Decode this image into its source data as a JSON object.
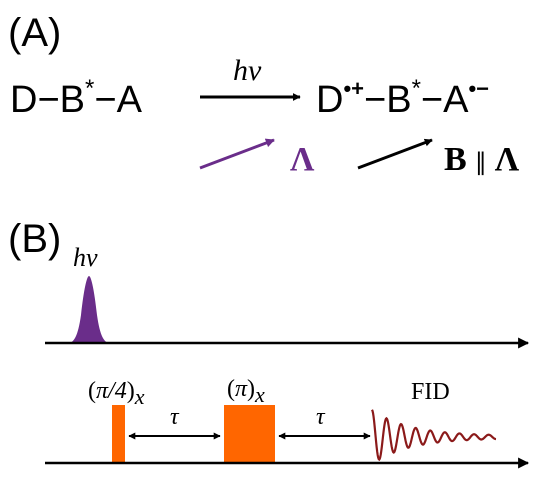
{
  "panel_a": {
    "label": "(A)",
    "reactant": {
      "d": "D",
      "dash1": "−",
      "b": "B",
      "b_star": "*",
      "dash2": "−",
      "a": "A"
    },
    "arrow_label": "hν",
    "product": {
      "d": "D",
      "d_charge": "•+",
      "dash1": "−",
      "b": "B",
      "b_star": "*",
      "dash2": "−",
      "a": "A",
      "a_charge": "•−"
    },
    "vector_lambda": "Λ",
    "vector_b": {
      "b": "B",
      "parallel": "∥",
      "lambda": "Λ"
    }
  },
  "panel_b": {
    "label": "(B)",
    "laser_label": "hν",
    "pulse1": {
      "open": "(",
      "angle": "π/4",
      "close": ")",
      "sub": "x"
    },
    "delay1": "τ",
    "pulse2": {
      "open": "(",
      "angle": "π",
      "close": ")",
      "sub": "x"
    },
    "delay2": "τ",
    "fid_label": "FID"
  },
  "colors": {
    "ink": "#000000",
    "lambda": "#6a2d8a",
    "laser_pulse": "#6a2d8a",
    "mw_pulse": "#ff6600",
    "fid": "#8b1a1a"
  },
  "icons": {
    "reaction_arrow": "right-arrow",
    "time_axis": "right-arrow"
  }
}
